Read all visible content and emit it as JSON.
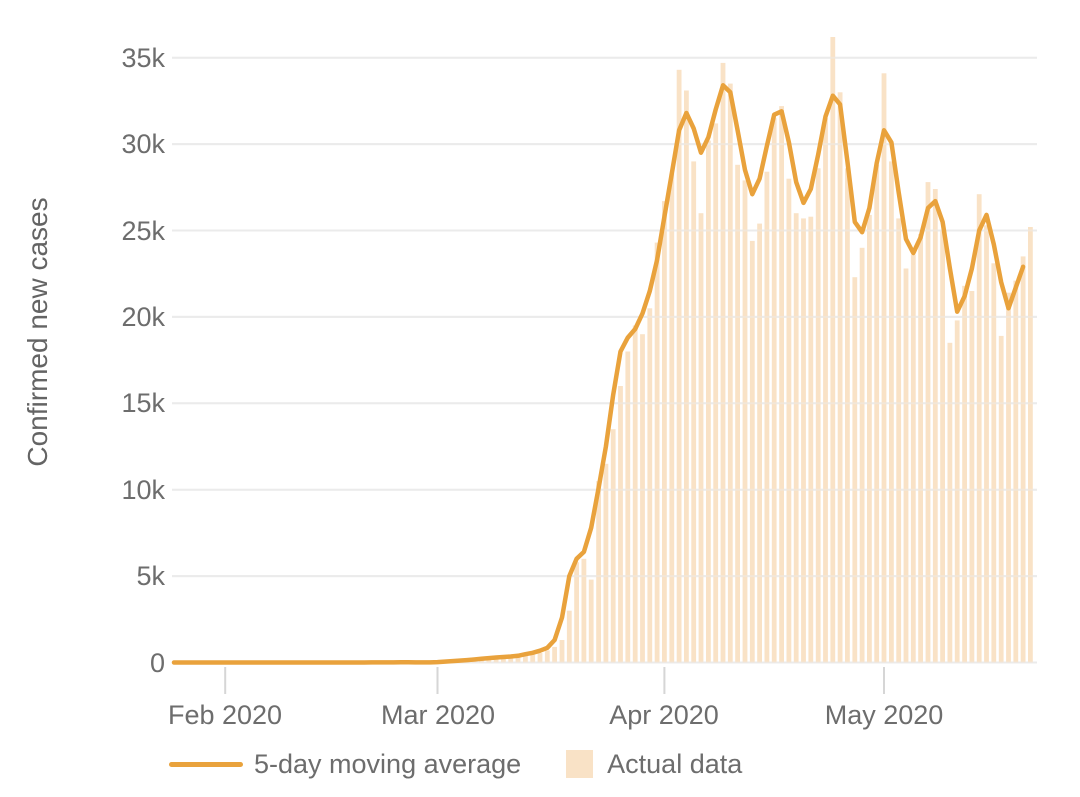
{
  "chart_data": {
    "type": "bar+line",
    "title": "",
    "ylabel": "Confirmed new cases",
    "xlabel": "",
    "start_date": "2020-01-25",
    "end_date": "2020-05-21",
    "frequency": "daily",
    "ylim": [
      0,
      36500
    ],
    "grid": "horizontal",
    "legend_position": "bottom",
    "colors": {
      "line": "#e9a23c",
      "bar": "#f9e2c6",
      "gridline": "#ebebeb",
      "axis_tick_mark": "#d6d6d6",
      "tick_text": "#6d6d6d",
      "axis_title_text": "#646464",
      "background": "#ffffff"
    },
    "yticks": [
      {
        "value": 0,
        "label": "0"
      },
      {
        "value": 5000,
        "label": "5k"
      },
      {
        "value": 10000,
        "label": "10k"
      },
      {
        "value": 15000,
        "label": "15k"
      },
      {
        "value": 20000,
        "label": "20k"
      },
      {
        "value": 25000,
        "label": "25k"
      },
      {
        "value": 30000,
        "label": "30k"
      },
      {
        "value": 35000,
        "label": "35k"
      }
    ],
    "xticks": [
      {
        "day_index": 7,
        "label": "Feb 2020"
      },
      {
        "day_index": 36,
        "label": "Mar 2020"
      },
      {
        "day_index": 67,
        "label": "Apr 2020"
      },
      {
        "day_index": 97,
        "label": "May 2020"
      }
    ],
    "series": [
      {
        "name": "Actual data",
        "type": "bar",
        "color": "#f9e2c6",
        "values": [
          1,
          1,
          1,
          1,
          1,
          2,
          2,
          1,
          1,
          2,
          1,
          2,
          1,
          1,
          1,
          1,
          1,
          1,
          2,
          1,
          2,
          1,
          1,
          1,
          1,
          1,
          2,
          19,
          2,
          1,
          18,
          5,
          5,
          3,
          5,
          8,
          20,
          22,
          30,
          68,
          100,
          130,
          160,
          210,
          250,
          290,
          320,
          360,
          400,
          450,
          550,
          700,
          900,
          1300,
          3000,
          5800,
          6000,
          4800,
          10500,
          11500,
          13500,
          16000,
          18000,
          19500,
          19000,
          20500,
          24300,
          26700,
          28300,
          34300,
          33100,
          29000,
          26000,
          30200,
          31200,
          34700,
          33500,
          28800,
          27900,
          24400,
          25400,
          28400,
          31500,
          32200,
          28000,
          26000,
          25700,
          25800,
          28600,
          31500,
          36200,
          33000,
          28600,
          22300,
          24000,
          25900,
          28800,
          34100,
          29000,
          25700,
          22800,
          23600,
          24800,
          27800,
          27400,
          25000,
          18500,
          19800,
          21800,
          21500,
          27100,
          25300,
          23100,
          18900,
          21400,
          22100,
          23500,
          25200
        ]
      },
      {
        "name": "5-day moving average",
        "type": "line",
        "color": "#e9a23c",
        "values": [
          1,
          1,
          1,
          1,
          1,
          1,
          2,
          2,
          2,
          2,
          2,
          2,
          2,
          1,
          1,
          1,
          1,
          1,
          1,
          1,
          1,
          1,
          1,
          1,
          1,
          1,
          2,
          5,
          6,
          6,
          8,
          9,
          9,
          8,
          7,
          6,
          25,
          50,
          80,
          110,
          140,
          175,
          215,
          255,
          290,
          320,
          350,
          390,
          480,
          560,
          680,
          850,
          1300,
          2600,
          5000,
          6000,
          6400,
          7800,
          10100,
          12500,
          15500,
          18000,
          18800,
          19300,
          20200,
          21500,
          23300,
          25800,
          28300,
          30800,
          31800,
          30900,
          29500,
          30400,
          32000,
          33400,
          33000,
          30800,
          28500,
          27100,
          28000,
          29900,
          31700,
          31900,
          30100,
          27800,
          26600,
          27400,
          29400,
          31600,
          32800,
          32300,
          29000,
          25500,
          24900,
          26300,
          28900,
          30800,
          30100,
          27200,
          24500,
          23700,
          24600,
          26300,
          26700,
          25500,
          22800,
          20300,
          21200,
          22800,
          25000,
          25900,
          24200,
          22000,
          20500,
          21700,
          22900,
          null
        ]
      }
    ]
  }
}
